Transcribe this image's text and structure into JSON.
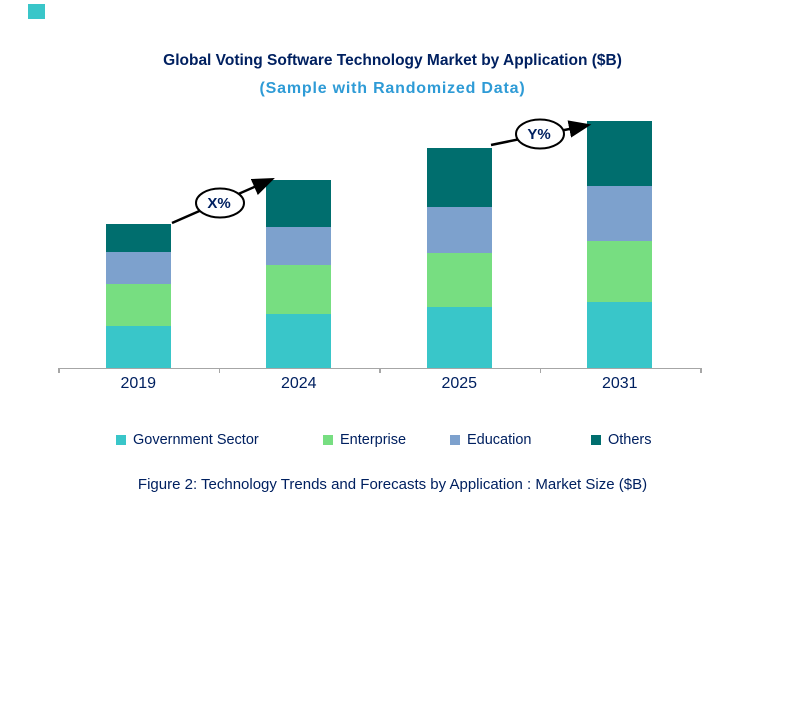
{
  "header": {
    "title": "Global Voting Software Technology Market by Application ($B)",
    "subtitle": "(Sample with Randomized Data)"
  },
  "caption": "Figure 2: Technology Trends and Forecasts by Application : Market Size ($B)",
  "colors": {
    "text_navy": "#002060",
    "subtitle_blue": "#2E9BD6",
    "axis_gray": "#A6A6A6",
    "annotation_black": "#000000",
    "accent_square": "#39C6C9"
  },
  "chart_data": {
    "type": "bar",
    "stacked": true,
    "title": "Global Voting Software Technology Market by Application ($B)",
    "subtitle": "(Sample with Randomized Data)",
    "categories": [
      "2019",
      "2024",
      "2025",
      "2031"
    ],
    "series": [
      {
        "name": "Government Sector",
        "color": "#39C6C9",
        "values": [
          4.2,
          5.4,
          6.1,
          6.6
        ]
      },
      {
        "name": "Enterprise",
        "color": "#77DE81",
        "values": [
          4.2,
          4.9,
          5.4,
          6.1
        ]
      },
      {
        "name": "Education",
        "color": "#7DA1CD",
        "values": [
          3.2,
          3.8,
          4.6,
          5.5
        ]
      },
      {
        "name": "Others",
        "color": "#006E6E",
        "values": [
          2.8,
          4.7,
          5.9,
          6.5
        ]
      }
    ],
    "stack_order_bottom_to_top": [
      "Government Sector",
      "Enterprise",
      "Education",
      "Others"
    ],
    "totals": [
      14.4,
      18.8,
      22.0,
      24.7
    ],
    "units": "$B",
    "xlabel": "",
    "ylabel": "",
    "y_axis_labels_shown": false,
    "grid": false,
    "legend_position": "bottom",
    "annotations": [
      {
        "label": "X%",
        "type": "growth-arrow",
        "from_category": "2019",
        "to_category": "2024"
      },
      {
        "label": "Y%",
        "type": "growth-arrow",
        "from_category": "2025",
        "to_category": "2031"
      }
    ]
  }
}
